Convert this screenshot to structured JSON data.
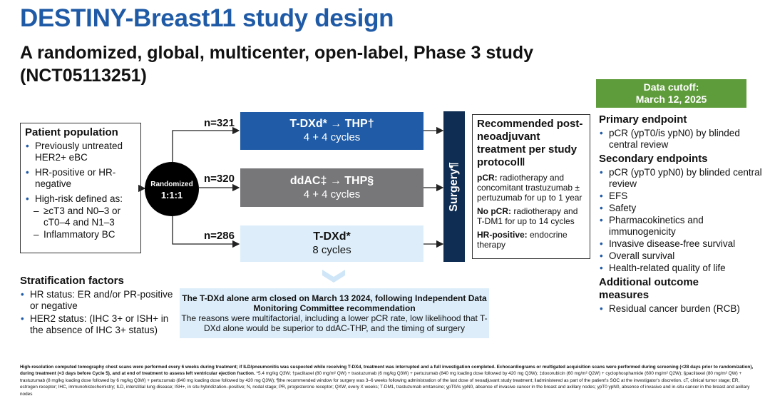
{
  "title": "DESTINY-Breast11 study design",
  "subtitle": "A randomized, global, multicenter, open-label, Phase 3 study (NCT05113251)",
  "data_cutoff": {
    "line1": "Data cutoff:",
    "line2": "March 12, 2025",
    "color": "#5e9b3a"
  },
  "patient_population": {
    "heading": "Patient population",
    "items": [
      "Previously untreated HER2+ eBC",
      "HR-positive or HR-negative",
      "High-risk defined as:"
    ],
    "subitems": [
      "≥cT3 and N0–3 or cT0–4 and N1–3",
      "Inflammatory BC"
    ]
  },
  "randomization": {
    "label": "Randomized",
    "ratio": "1:1:1"
  },
  "arms": [
    {
      "n": "n=321",
      "title": "T-DXd* → THP†",
      "cycles": "4 + 4 cycles",
      "color": "#1f5ba6"
    },
    {
      "n": "n=320",
      "title": "ddAC‡ → THP§",
      "cycles": "4 + 4 cycles",
      "color": "#77777a"
    },
    {
      "n": "n=286",
      "title": "T-DXd*",
      "cycles": "8 cycles",
      "color": "#ddeefa"
    }
  ],
  "surgery": "Surgery¶",
  "recommended": {
    "heading": "Recommended post-neoadjuvant treatment per study protocol‖",
    "pcr_label": "pCR:",
    "pcr_text": " radiotherapy and concomitant trastuzumab ± pertuzumab for up to 1 year",
    "nopcr_label": "No pCR:",
    "nopcr_text": " radiotherapy and T-DM1 for up to 14 cycles",
    "hr_label": "HR-positive:",
    "hr_text": " endocrine therapy"
  },
  "endpoints": {
    "primary_heading": "Primary endpoint",
    "primary": [
      "pCR (ypT0/is ypN0) by blinded central review"
    ],
    "secondary_heading": "Secondary endpoints",
    "secondary": [
      "pCR (ypT0 ypN0) by blinded central review",
      "EFS",
      "Safety",
      "Pharmacokinetics and immunogenicity",
      "Invasive disease-free survival",
      "Overall survival",
      "Health-related quality of life"
    ],
    "additional_heading": "Additional outcome measures",
    "additional": [
      "Residual cancer burden (RCB)"
    ]
  },
  "stratification": {
    "heading": "Stratification factors",
    "items": [
      "HR status: ER and/or PR-positive or negative",
      "HER2 status: (IHC 3+ or ISH+ in the absence of IHC 3+ status)"
    ]
  },
  "info_box": {
    "bold": "The T-DXd alone arm closed on March 13 2024, following Independent Data Monitoring Committee recommendation",
    "text": "The reasons were multifactorial, including a lower pCR rate, low likelihood that T-DXd alone would be superior to ddAC-THP, and the timing of surgery"
  },
  "footnote": {
    "bold": "High-resolution computed tomography chest scans were performed every 6 weeks during treatment; if ILD/pneumonitis was suspected while receiving T-DXd, treatment was interrupted and a full investigation completed. Echocardiograms or multigated acquisition scans were performed during screening (<28 days prior to randomization), during treatment (<3 days before Cycle 5), and at end of treatment to assess left ventricular ejection fraction.",
    "text": " *5.4 mg/kg Q3W; †paclitaxel (80 mg/m² QW) + trastuzumab (6 mg/kg Q3W) + pertuzumab (840 mg loading dose followed by 420 mg Q3W); ‡doxorubicin (60 mg/m² Q2W) + cyclophosphamide (600 mg/m² Q2W); §paclitaxel (80 mg/m² QW) + trastuzumab (8 mg/kg loading dose followed by 6 mg/kg Q3W) + pertuzumab (840 mg loading dose followed by 420 mg Q3W); ¶the recommended window for surgery was 3–6 weeks following administration of the last dose of neoadjuvant study treatment; ‖administered as part of the patient's SOC at the investigator's discretion. cT, clinical tumor stage; ER, estrogen receptor; IHC, immunohistochemistry; ILD, interstitial lung disease; ISH+, in situ hybridization–positive; N, nodal stage; PR, progesterone receptor; QXW, every X weeks; T-DM1, trastuzumab emtansine; ypT0/is ypN0, absence of invasive cancer in the breast and axillary nodes; ypT0 ypN0, absence of invasive and in-situ cancer in the breast and axillary nodes"
  }
}
